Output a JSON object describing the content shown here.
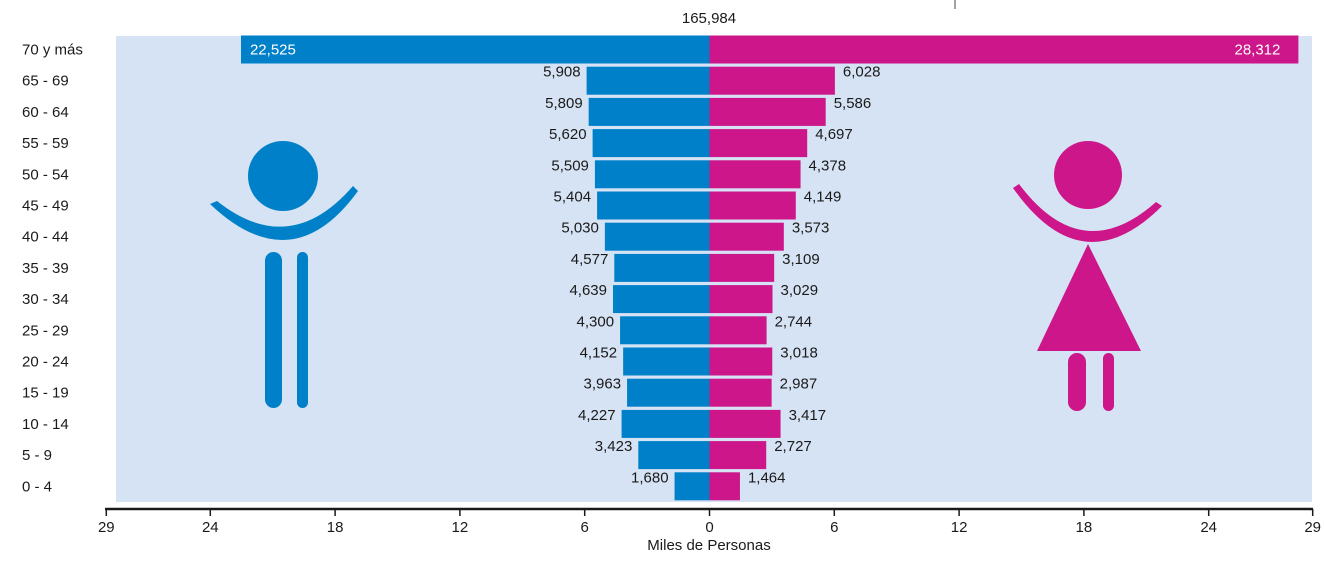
{
  "chart_data": {
    "type": "bar",
    "orientation": "horizontal",
    "layout": "population-pyramid",
    "title": "165,984",
    "xlabel": "Miles de Personas",
    "categories": [
      "70 y más",
      "65 - 69",
      "60 - 64",
      "55 - 59",
      "50 - 54",
      "45 - 49",
      "40 - 44",
      "35 - 39",
      "30 - 34",
      "25 - 29",
      "20 - 24",
      "15 - 19",
      "10 - 14",
      "5 - 9",
      "0 - 4"
    ],
    "series": [
      {
        "side": "left",
        "color": "#0080c8",
        "icon": "man-icon",
        "values": [
          22525,
          5908,
          5809,
          5620,
          5509,
          5404,
          5030,
          4577,
          4639,
          4300,
          4152,
          3963,
          4227,
          3423,
          1680
        ],
        "labels": [
          "22,525",
          "5,908",
          "5,809",
          "5,620",
          "5,509",
          "5,404",
          "5,030",
          "4,577",
          "4,639",
          "4,300",
          "4,152",
          "3,963",
          "4,227",
          "3,423",
          "1,680"
        ]
      },
      {
        "side": "right",
        "color": "#cc1689",
        "icon": "woman-icon",
        "values": [
          28312,
          6028,
          5586,
          4697,
          4378,
          4149,
          3573,
          3109,
          3029,
          2744,
          3018,
          2987,
          3417,
          2727,
          1464
        ],
        "labels": [
          "28,312",
          "6,028",
          "5,586",
          "4,697",
          "4,378",
          "4,149",
          "3,573",
          "3,109",
          "3,029",
          "2,744",
          "3,018",
          "2,987",
          "3,417",
          "2,727",
          "1,464"
        ]
      }
    ],
    "axis": {
      "unit": "miles",
      "range": [
        29,
        29
      ],
      "ticks": [
        29,
        24,
        18,
        12,
        6,
        0,
        6,
        12,
        18,
        24,
        29
      ],
      "tick_labels": [
        "29",
        "24",
        "18",
        "12",
        "6",
        "0",
        "6",
        "12",
        "18",
        "24",
        "29"
      ]
    },
    "background_color": "#d6e3f4",
    "grid": false,
    "legend": "none"
  }
}
